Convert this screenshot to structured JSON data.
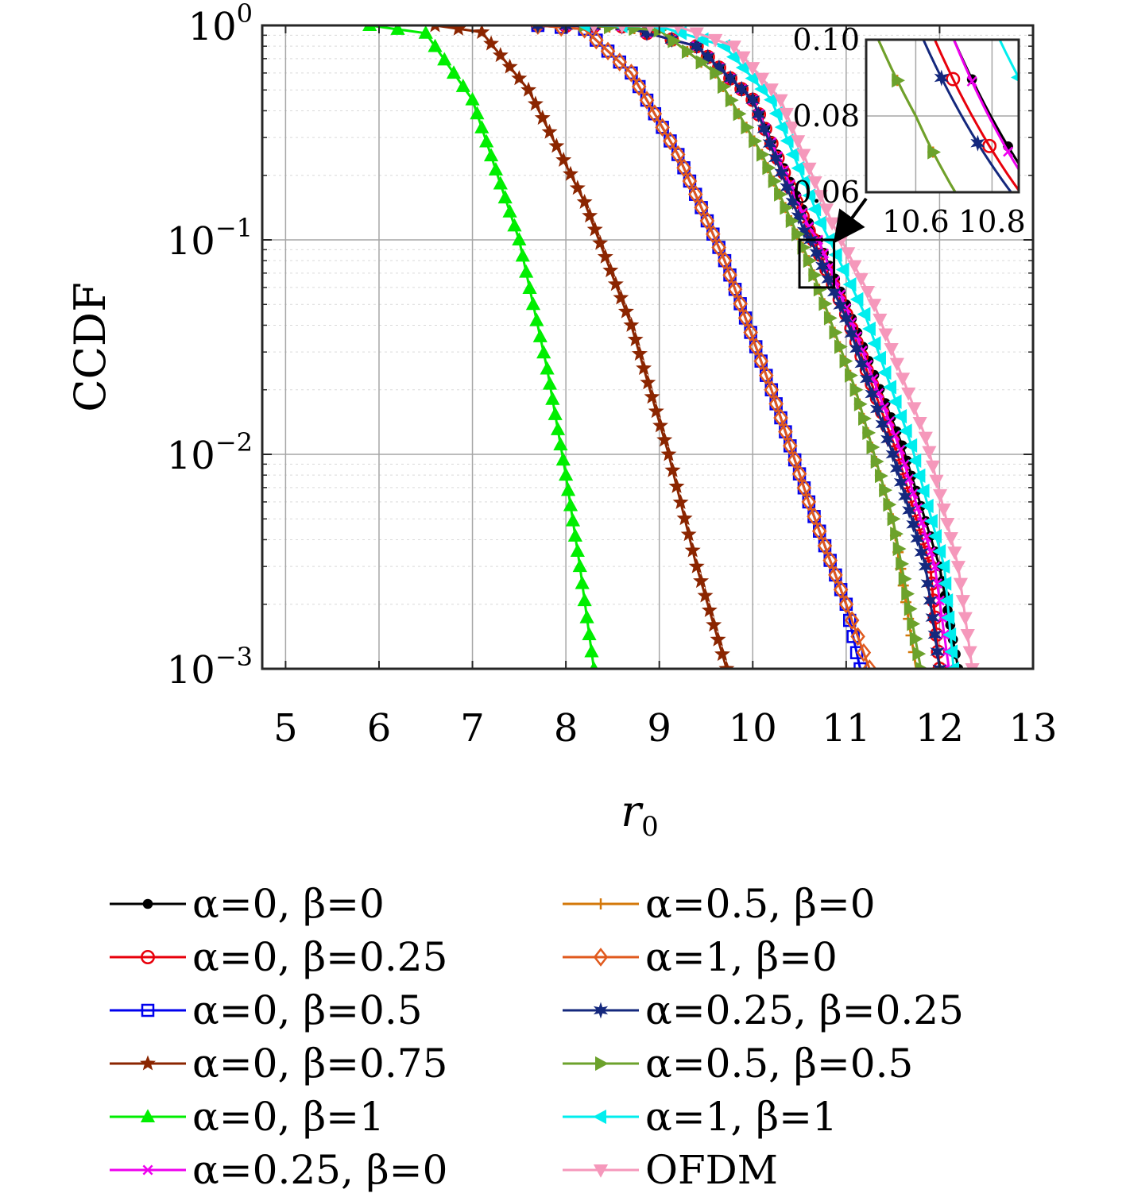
{
  "chart_data": {
    "type": "line",
    "title": "",
    "xlabel": "r",
    "xlabel_sub": "0",
    "ylabel": "CCDF",
    "xscale": "linear",
    "yscale": "log",
    "xlim": [
      4.75,
      13
    ],
    "ylim": [
      0.001,
      1
    ],
    "xticks": [
      5,
      6,
      7,
      8,
      9,
      10,
      11,
      12,
      13
    ],
    "xtick_labels": [
      "5",
      "6",
      "7",
      "8",
      "9",
      "10",
      "11",
      "12",
      "13"
    ],
    "yticks": [
      1,
      0.1,
      0.01,
      0.001
    ],
    "ytick_labels": [
      {
        "base": "10",
        "exp": "0"
      },
      {
        "base": "10",
        "exp": "−1"
      },
      {
        "base": "10",
        "exp": "−2"
      },
      {
        "base": "10",
        "exp": "−3"
      }
    ],
    "grid": true,
    "legend_placement": "bottom, two columns",
    "zoom_box": {
      "x": [
        10.5,
        10.87
      ],
      "y": [
        0.06,
        0.1
      ]
    },
    "inset": {
      "xlim": [
        10.47,
        10.87
      ],
      "ylim": [
        0.06,
        0.1
      ],
      "xticks": [
        10.6,
        10.8
      ],
      "xtick_labels": [
        "10.6",
        "10.8"
      ],
      "yticks": [
        0.06,
        0.08,
        0.1
      ],
      "ytick_labels": [
        "0.06",
        "0.08",
        "0.10"
      ]
    },
    "series": [
      {
        "name": "α=0, β=0",
        "color": "#000000",
        "marker": "dot",
        "points": [
          [
            7.7,
            1
          ],
          [
            8.6,
            0.99
          ],
          [
            9.4,
            0.8
          ],
          [
            10.0,
            0.45
          ],
          [
            10.6,
            0.12
          ],
          [
            10.7,
            0.1
          ],
          [
            11.0,
            0.05
          ],
          [
            11.6,
            0.011
          ],
          [
            12.0,
            0.003
          ],
          [
            12.2,
            0.001
          ]
        ]
      },
      {
        "name": "α=0, β=0.25",
        "color": "#e8000b",
        "marker": "circle",
        "points": [
          [
            7.7,
            1
          ],
          [
            8.6,
            0.99
          ],
          [
            9.4,
            0.8
          ],
          [
            10.0,
            0.45
          ],
          [
            10.6,
            0.11
          ],
          [
            10.65,
            0.1
          ],
          [
            11.0,
            0.045
          ],
          [
            11.55,
            0.01
          ],
          [
            11.9,
            0.003
          ],
          [
            12.0,
            0.001
          ]
        ]
      },
      {
        "name": "α=0, β=0.5",
        "color": "#0000ee",
        "marker": "square",
        "points": [
          [
            7.7,
            1
          ],
          [
            8.2,
            0.96
          ],
          [
            8.7,
            0.6
          ],
          [
            9.2,
            0.25
          ],
          [
            9.7,
            0.08
          ],
          [
            10.2,
            0.02
          ],
          [
            10.6,
            0.006
          ],
          [
            11.0,
            0.002
          ],
          [
            11.15,
            0.001
          ]
        ]
      },
      {
        "name": "α=0, β=0.75",
        "color": "#8b2500",
        "marker": "star",
        "points": [
          [
            6.6,
            1
          ],
          [
            7.1,
            0.93
          ],
          [
            7.6,
            0.5
          ],
          [
            8.2,
            0.15
          ],
          [
            8.7,
            0.04
          ],
          [
            9.1,
            0.01
          ],
          [
            9.4,
            0.003
          ],
          [
            9.72,
            0.001
          ]
        ]
      },
      {
        "name": "α=0, β=1",
        "color": "#00ee00",
        "marker": "triangle-up",
        "points": [
          [
            5.9,
            1
          ],
          [
            6.5,
            0.92
          ],
          [
            7.0,
            0.45
          ],
          [
            7.5,
            0.1
          ],
          [
            7.8,
            0.025
          ],
          [
            8.0,
            0.008
          ],
          [
            8.15,
            0.003
          ],
          [
            8.3,
            0.001
          ]
        ]
      },
      {
        "name": "α=0.25, β=0",
        "color": "#ee00ee",
        "marker": "x",
        "points": [
          [
            7.7,
            1
          ],
          [
            8.6,
            0.99
          ],
          [
            9.4,
            0.8
          ],
          [
            10.0,
            0.45
          ],
          [
            10.6,
            0.115
          ],
          [
            10.7,
            0.1
          ],
          [
            11.0,
            0.048
          ],
          [
            11.58,
            0.0105
          ],
          [
            11.95,
            0.003
          ],
          [
            12.1,
            0.001
          ]
        ]
      },
      {
        "name": "α=0.5, β=0",
        "color": "#d4780a",
        "marker": "plus",
        "points": [
          [
            8.2,
            1
          ],
          [
            9.0,
            0.95
          ],
          [
            9.6,
            0.6
          ],
          [
            10.1,
            0.25
          ],
          [
            10.6,
            0.08
          ],
          [
            11.1,
            0.02
          ],
          [
            11.5,
            0.005
          ],
          [
            11.75,
            0.001
          ]
        ]
      },
      {
        "name": "α=1, β=0",
        "color": "#e05a1e",
        "marker": "diamond",
        "points": [
          [
            7.7,
            1
          ],
          [
            8.2,
            0.96
          ],
          [
            8.7,
            0.6
          ],
          [
            9.2,
            0.25
          ],
          [
            9.7,
            0.08
          ],
          [
            10.2,
            0.02
          ],
          [
            10.6,
            0.006
          ],
          [
            11.0,
            0.002
          ],
          [
            11.25,
            0.001
          ]
        ]
      },
      {
        "name": "α=0.25, β=0.25",
        "color": "#14287d",
        "marker": "hexstar",
        "points": [
          [
            7.7,
            1
          ],
          [
            8.6,
            0.99
          ],
          [
            9.4,
            0.8
          ],
          [
            10.0,
            0.45
          ],
          [
            10.55,
            0.11
          ],
          [
            10.62,
            0.1
          ],
          [
            11.0,
            0.043
          ],
          [
            11.5,
            0.01
          ],
          [
            11.85,
            0.003
          ],
          [
            12.0,
            0.001
          ]
        ]
      },
      {
        "name": "α=0.5, β=0.5",
        "color": "#6ca22c",
        "marker": "triangle-right",
        "points": [
          [
            8.2,
            1
          ],
          [
            9.0,
            0.95
          ],
          [
            9.6,
            0.6
          ],
          [
            10.1,
            0.25
          ],
          [
            10.6,
            0.08
          ],
          [
            11.1,
            0.02
          ],
          [
            11.5,
            0.005
          ],
          [
            11.8,
            0.001
          ]
        ]
      },
      {
        "name": "α=1, β=1",
        "color": "#00eeee",
        "marker": "triangle-left",
        "points": [
          [
            8.2,
            1
          ],
          [
            9.0,
            0.99
          ],
          [
            9.7,
            0.8
          ],
          [
            10.2,
            0.45
          ],
          [
            10.73,
            0.12
          ],
          [
            10.82,
            0.1
          ],
          [
            11.2,
            0.045
          ],
          [
            11.7,
            0.011
          ],
          [
            12.05,
            0.003
          ],
          [
            12.15,
            0.001
          ]
        ]
      },
      {
        "name": "OFDM",
        "color": "#f598bb",
        "marker": "triangle-down",
        "points": [
          [
            8.3,
            1
          ],
          [
            9.2,
            0.99
          ],
          [
            9.8,
            0.8
          ],
          [
            10.3,
            0.45
          ],
          [
            10.85,
            0.12
          ],
          [
            10.95,
            0.1
          ],
          [
            11.3,
            0.05
          ],
          [
            11.85,
            0.012
          ],
          [
            12.2,
            0.003
          ],
          [
            12.35,
            0.001
          ]
        ]
      }
    ]
  }
}
